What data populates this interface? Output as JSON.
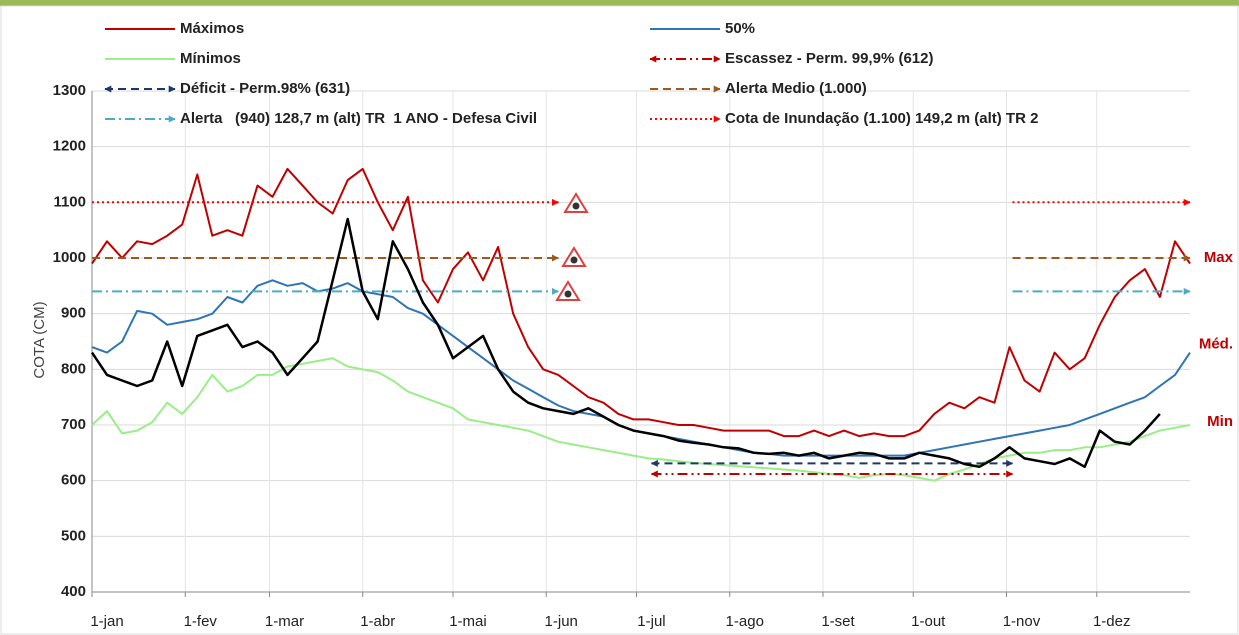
{
  "chart_data": {
    "type": "line",
    "y_label": "COTA (CM)",
    "x": [
      1,
      6,
      11,
      16,
      21,
      26,
      31,
      36,
      41,
      46,
      51,
      56,
      61,
      66,
      71,
      76,
      81,
      86,
      91,
      96,
      101,
      106,
      111,
      116,
      121,
      126,
      131,
      136,
      141,
      146,
      151,
      156,
      161,
      166,
      171,
      176,
      181,
      186,
      191,
      196,
      201,
      206,
      211,
      216,
      221,
      226,
      231,
      236,
      241,
      246,
      251,
      256,
      261,
      266,
      271,
      276,
      281,
      286,
      291,
      296,
      301,
      306,
      311,
      316,
      321,
      326,
      331,
      336,
      341,
      346,
      351,
      356,
      361,
      366
    ],
    "xlim": [
      1,
      366
    ],
    "xticks": [
      {
        "value": 1,
        "label": "1-jan"
      },
      {
        "value": 32,
        "label": "1-fev"
      },
      {
        "value": 60,
        "label": "1-mar"
      },
      {
        "value": 91,
        "label": "1-abr"
      },
      {
        "value": 121,
        "label": "1-mai"
      },
      {
        "value": 152,
        "label": "1-jun"
      },
      {
        "value": 182,
        "label": "1-jul"
      },
      {
        "value": 213,
        "label": "1-ago"
      },
      {
        "value": 244,
        "label": "1-set"
      },
      {
        "value": 274,
        "label": "1-out"
      },
      {
        "value": 305,
        "label": "1-nov"
      },
      {
        "value": 335,
        "label": "1-dez"
      }
    ],
    "ylim": [
      400,
      1300
    ],
    "yticks": [
      400,
      500,
      600,
      700,
      800,
      900,
      1000,
      1100,
      1200,
      1300
    ],
    "grid": true,
    "series": [
      {
        "name": "Máximos",
        "color": "#c00000",
        "line_style": "solid",
        "values": [
          990,
          1030,
          1000,
          1030,
          1025,
          1040,
          1060,
          1150,
          1040,
          1050,
          1040,
          1130,
          1110,
          1160,
          1130,
          1100,
          1080,
          1140,
          1160,
          1100,
          1050,
          1110,
          960,
          920,
          980,
          1010,
          960,
          1020,
          900,
          840,
          800,
          790,
          770,
          750,
          740,
          720,
          710,
          710,
          705,
          700,
          700,
          695,
          690,
          690,
          690,
          690,
          680,
          680,
          690,
          680,
          690,
          680,
          685,
          680,
          680,
          690,
          720,
          740,
          730,
          750,
          740,
          840,
          780,
          760,
          830,
          800,
          820,
          880,
          930,
          960,
          980,
          930,
          1030,
          990
        ]
      },
      {
        "name": "50%",
        "color": "#2e75b6",
        "line_style": "solid",
        "values": [
          840,
          830,
          850,
          905,
          900,
          880,
          885,
          890,
          900,
          930,
          920,
          950,
          960,
          950,
          955,
          940,
          945,
          955,
          940,
          935,
          930,
          910,
          900,
          880,
          860,
          840,
          820,
          800,
          780,
          765,
          750,
          735,
          725,
          720,
          715,
          700,
          690,
          685,
          680,
          675,
          670,
          665,
          660,
          655,
          650,
          648,
          645,
          645,
          645,
          645,
          645,
          645,
          645,
          645,
          645,
          650,
          655,
          660,
          665,
          670,
          675,
          680,
          685,
          690,
          695,
          700,
          710,
          720,
          730,
          740,
          750,
          770,
          790,
          830
        ]
      },
      {
        "name": "Mínimos",
        "color": "#99ee88",
        "line_style": "solid",
        "values": [
          700,
          725,
          685,
          690,
          705,
          740,
          720,
          750,
          790,
          760,
          770,
          790,
          790,
          805,
          810,
          815,
          820,
          805,
          800,
          795,
          780,
          760,
          750,
          740,
          730,
          710,
          705,
          700,
          695,
          690,
          680,
          670,
          665,
          660,
          655,
          650,
          645,
          640,
          638,
          635,
          632,
          630,
          628,
          626,
          624,
          622,
          620,
          618,
          615,
          612,
          610,
          605,
          610,
          612,
          610,
          605,
          600,
          612,
          620,
          630,
          640,
          645,
          650,
          650,
          655,
          655,
          660,
          660,
          665,
          670,
          680,
          690,
          695,
          700
        ]
      },
      {
        "name": "Escassez - Perm. 99,9% (612)",
        "color": "#c00000",
        "line_style": "dashdotdot",
        "arrows": "both",
        "x": [
          187,
          307
        ],
        "values": [
          612,
          612
        ]
      },
      {
        "name": "Déficit - Perm.98% (631)",
        "color": "#1f3864",
        "line_style": "dashed",
        "arrows": "both",
        "x": [
          187,
          307
        ],
        "values": [
          631,
          631
        ]
      },
      {
        "name": "Alerta Medio (1.000)",
        "color": "#9c5a1e",
        "line_style": "dashed",
        "arrows": "end",
        "x": [
          1,
          156,
          157,
          307,
          366
        ],
        "values": [
          1000,
          1000,
          null,
          1000,
          1000
        ]
      },
      {
        "name": "Alerta   (940) 128,7 m (alt) TR  1 ANO - Defesa Civil",
        "color": "#4bacc6",
        "line_style": "dashdot",
        "arrows": "end",
        "x": [
          1,
          156,
          157,
          307,
          366
        ],
        "values": [
          940,
          940,
          null,
          940,
          940
        ]
      },
      {
        "name": "Cota de Inundação (1.100) 149,2 m (alt) TR 2",
        "color": "#ff0000",
        "line_style": "dotted",
        "arrows": "end",
        "x": [
          1,
          156,
          157,
          307,
          366
        ],
        "values": [
          1100,
          1100,
          null,
          1100,
          1100
        ]
      },
      {
        "color": "#000000",
        "line_style": "solid",
        "width": 2.5,
        "values": [
          830,
          790,
          780,
          770,
          780,
          850,
          770,
          860,
          870,
          880,
          840,
          850,
          830,
          790,
          820,
          850,
          960,
          1070,
          940,
          890,
          1030,
          980,
          920,
          880,
          820,
          840,
          860,
          800,
          760,
          740,
          730,
          725,
          720,
          730,
          715,
          700,
          690,
          685,
          680,
          672,
          668,
          665,
          660,
          658,
          650,
          648,
          650,
          645,
          650,
          640,
          645,
          650,
          648,
          640,
          640,
          650,
          645,
          640,
          630,
          625,
          640,
          660,
          640,
          635,
          630,
          640,
          625,
          690,
          670,
          665,
          690,
          720,
          null,
          null
        ]
      }
    ],
    "annotations": [
      {
        "text": "Max",
        "value": 1000
      },
      {
        "text": "Méd.",
        "value": 845
      },
      {
        "text": "Min",
        "value": 705
      }
    ]
  }
}
